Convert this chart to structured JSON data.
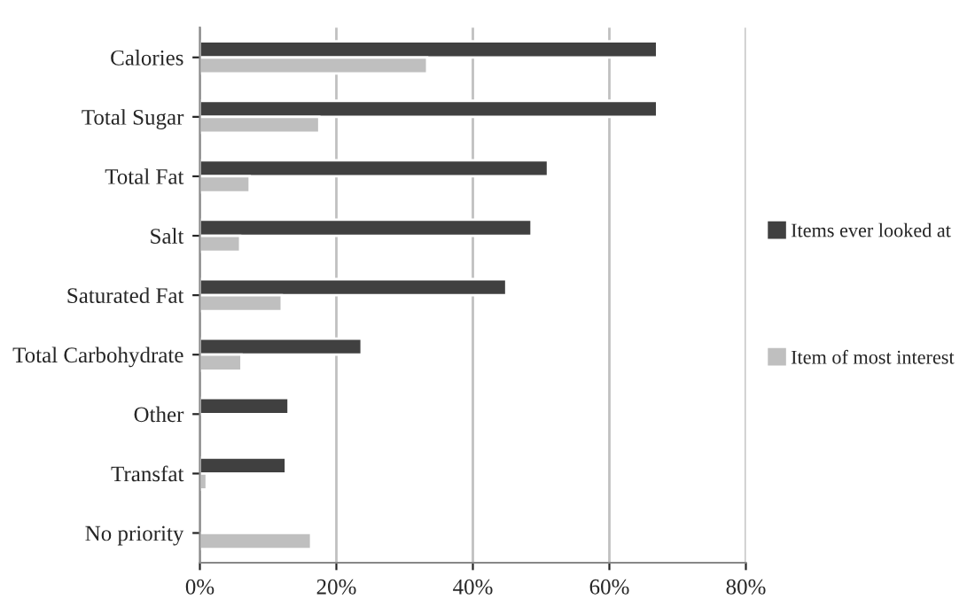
{
  "chart_data": {
    "type": "bar",
    "orientation": "horizontal",
    "categories": [
      "Calories",
      "Total Sugar",
      "Total Fat",
      "Salt",
      "Saturated Fat",
      "Total Carbohydrate",
      "Other",
      "Transfat",
      "No priority"
    ],
    "series": [
      {
        "name": "Items ever looked at",
        "color": "#404040",
        "values": [
          67,
          67,
          51,
          48.6,
          44.9,
          23.7,
          13,
          12.6,
          null
        ]
      },
      {
        "name": "Item of most interest",
        "color": "#bfbfbf",
        "values": [
          33.3,
          17.5,
          7.3,
          5.9,
          12,
          6.1,
          null,
          1.0,
          16.3
        ]
      }
    ],
    "xlim": [
      0,
      80
    ],
    "xticks": [
      {
        "value": 0,
        "label": "0%"
      },
      {
        "value": 20,
        "label": "20%"
      },
      {
        "value": 40,
        "label": "40%"
      },
      {
        "value": 60,
        "label": "60%"
      },
      {
        "value": 80,
        "label": "80%"
      }
    ],
    "grid": "x",
    "legend": "right"
  }
}
